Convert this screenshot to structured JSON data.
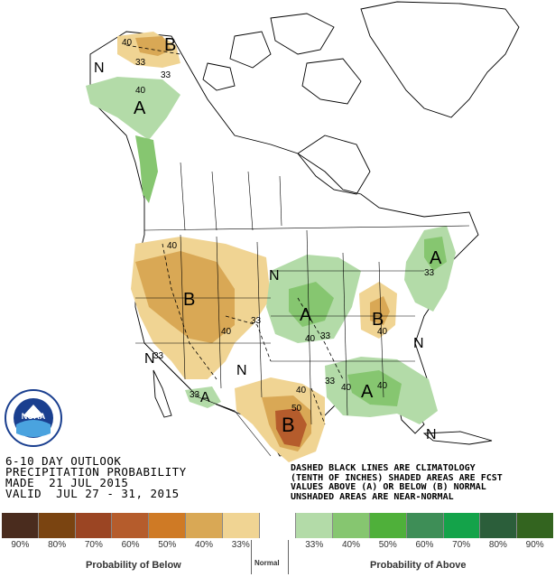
{
  "title_lines": [
    "6-10 DAY OUTLOOK",
    "PRECIPITATION PROBABILITY",
    "MADE  21 JUL 2015",
    "VALID  JUL 27 - 31, 2015"
  ],
  "legend_note_lines": [
    "DASHED BLACK LINES ARE CLIMATOLOGY",
    "(TENTH OF INCHES) SHADED AREAS ARE FCST",
    "VALUES ABOVE (A) OR BELOW (B) NORMAL",
    "UNSHADED AREAS ARE NEAR-NORMAL"
  ],
  "logo_text": "NOAA",
  "scale": {
    "colors": [
      "#4a2c1e",
      "#7a4411",
      "#9b4523",
      "#b55c2c",
      "#cf7a25",
      "#d9a855",
      "#f0d493",
      "#ffffff",
      "#b3dba8",
      "#86c670",
      "#4fb03a",
      "#3e8e57",
      "#14a34a",
      "#2b5e3a",
      "#33641f"
    ],
    "labels": [
      "90%",
      "80%",
      "70%",
      "60%",
      "50%",
      "40%",
      "33%",
      "",
      "33%",
      "40%",
      "50%",
      "60%",
      "70%",
      "80%",
      "90%"
    ],
    "below_title": "Probability of Below",
    "normal_title": "Normal",
    "above_title": "Probability of Above"
  },
  "map_labels": {
    "B": "B",
    "A": "A",
    "N": "N",
    "contours": [
      "40",
      "33",
      "40",
      "33",
      "40",
      "40",
      "33",
      "40",
      "33",
      "40",
      "33",
      "40",
      "33",
      "50",
      "40",
      "33",
      "40",
      "33"
    ]
  }
}
